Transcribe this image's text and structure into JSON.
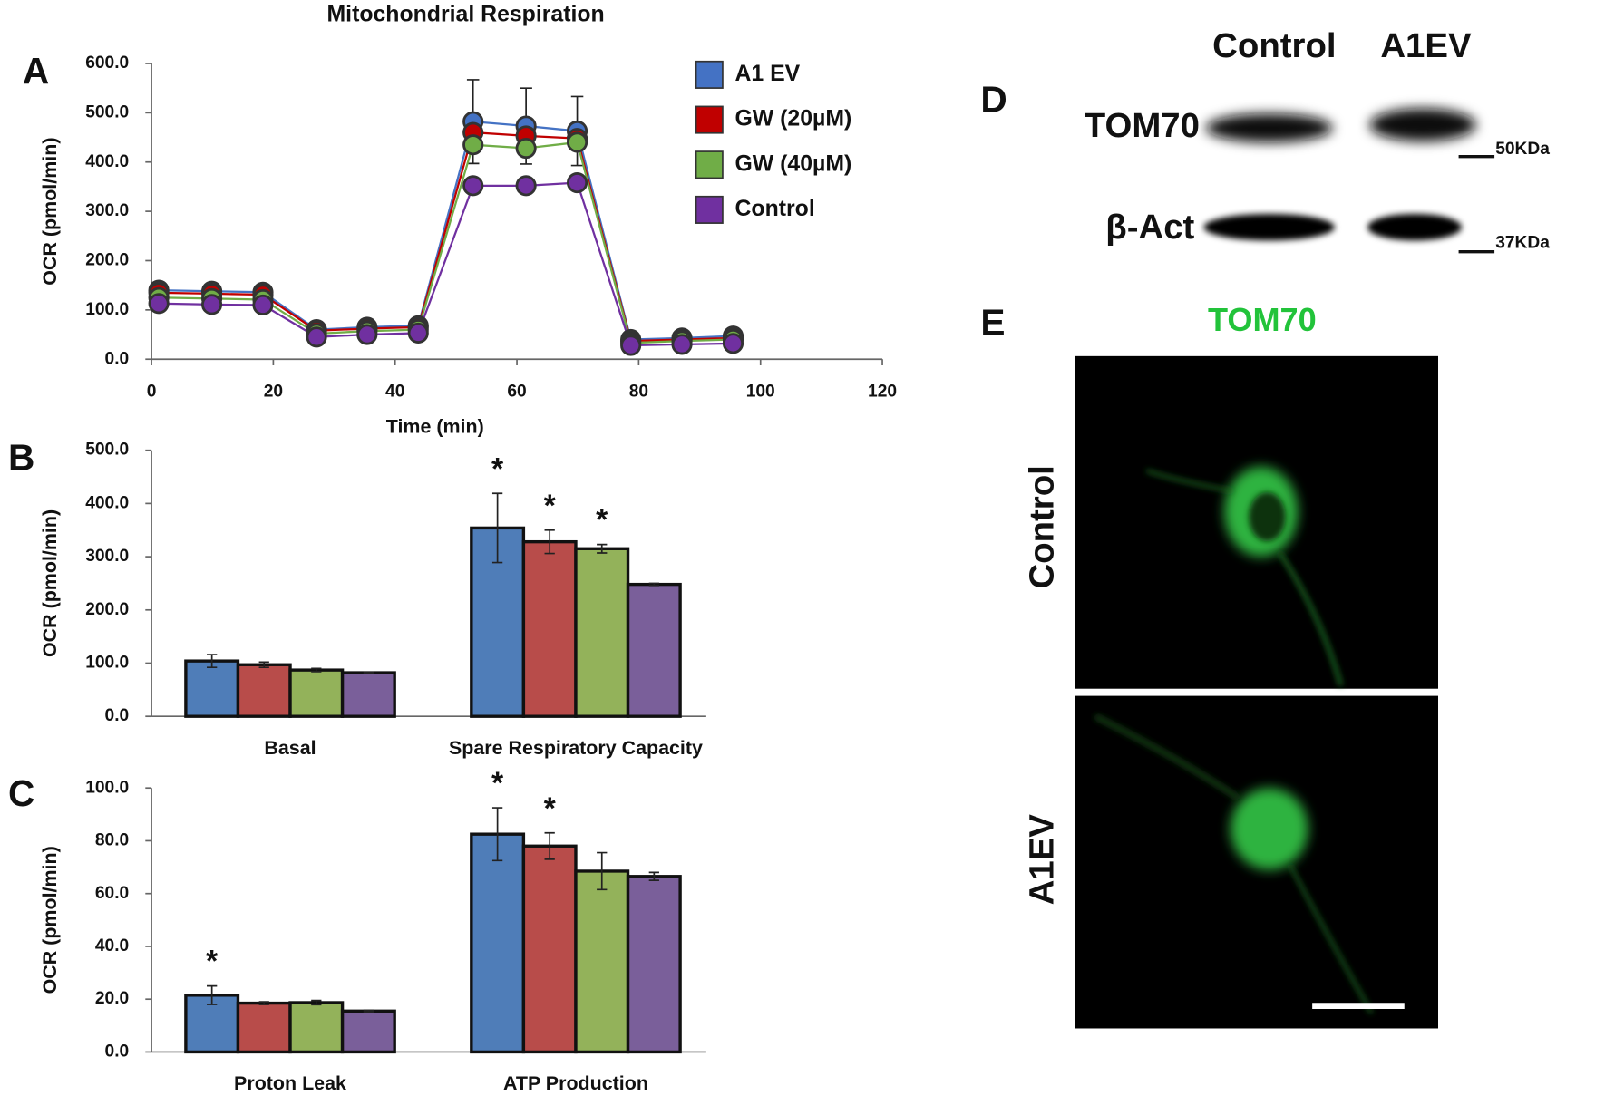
{
  "panel_labels": [
    "A",
    "B",
    "C",
    "D",
    "E"
  ],
  "chart_data": [
    {
      "type": "line",
      "title": "Mitochondrial Respiration",
      "xlabel": "Time (min)",
      "ylabel": "OCR (pmol/min)",
      "x": [
        1.2,
        9.9,
        18.3,
        27.1,
        35.4,
        43.8,
        52.8,
        61.5,
        69.9,
        78.7,
        87.1,
        95.5
      ],
      "xlim": [
        0,
        120
      ],
      "xticks": [
        0,
        20,
        40,
        60,
        80,
        100,
        120
      ],
      "ylim": [
        0,
        600
      ],
      "yticks": [
        {
          "value": 0,
          "label": "0.0"
        },
        {
          "value": 100,
          "label": "100.0"
        },
        {
          "value": 200,
          "label": "200.0"
        },
        {
          "value": 300,
          "label": "300.0"
        },
        {
          "value": 400,
          "label": "400.0"
        },
        {
          "value": 500,
          "label": "500.0"
        },
        {
          "value": 600,
          "label": "600.0"
        }
      ],
      "legend": "top-right",
      "series": [
        {
          "name": "A1 EV",
          "color": "#4472c4",
          "values": [
            140,
            138,
            136,
            60,
            65,
            68,
            482,
            473,
            463,
            40,
            43,
            47
          ],
          "errors": [
            8,
            8,
            8,
            5,
            5,
            5,
            85,
            77,
            70,
            5,
            5,
            5
          ]
        },
        {
          "name": "GW (20µM)",
          "color": "#c00000",
          "values": [
            135,
            133,
            131,
            58,
            62,
            65,
            460,
            453,
            448,
            37,
            40,
            43
          ]
        },
        {
          "name": "GW (40µM)",
          "color": "#70ad47",
          "values": [
            125,
            123,
            121,
            52,
            57,
            60,
            435,
            428,
            440,
            33,
            37,
            40
          ]
        },
        {
          "name": "Control",
          "color": "#7030a0",
          "values": [
            113,
            111,
            110,
            45,
            50,
            53,
            352,
            352,
            358,
            28,
            30,
            32
          ]
        }
      ]
    },
    {
      "type": "bar",
      "ylabel": "OCR (pmol/min)",
      "categories": [
        "Basal",
        "Spare Respiratory Capacity"
      ],
      "ylim": [
        0,
        500
      ],
      "yticks": [
        {
          "value": 0,
          "label": "0.0"
        },
        {
          "value": 100,
          "label": "100.0"
        },
        {
          "value": 200,
          "label": "200.0"
        },
        {
          "value": 300,
          "label": "300.0"
        },
        {
          "value": 400,
          "label": "400.0"
        },
        {
          "value": 500,
          "label": "500.0"
        }
      ],
      "series": [
        {
          "color": "#4f7db8",
          "values": [
            104,
            354
          ],
          "errors": [
            12,
            65
          ],
          "significance": [
            null,
            "*"
          ]
        },
        {
          "color": "#b84c4a",
          "values": [
            97,
            328
          ],
          "errors": [
            5,
            22
          ],
          "significance": [
            null,
            "*"
          ]
        },
        {
          "color": "#93b25a",
          "values": [
            87,
            315
          ],
          "errors": [
            3,
            8
          ],
          "significance": [
            null,
            "*"
          ]
        },
        {
          "color": "#7a5f9a",
          "values": [
            82,
            248
          ],
          "errors": [
            1,
            2
          ]
        }
      ]
    },
    {
      "type": "bar",
      "ylabel": "OCR (pmol/min)",
      "categories": [
        "Proton Leak",
        "ATP Production"
      ],
      "ylim": [
        0,
        100
      ],
      "yticks": [
        {
          "value": 0,
          "label": "0.0"
        },
        {
          "value": 20,
          "label": "20.0"
        },
        {
          "value": 40,
          "label": "40.0"
        },
        {
          "value": 60,
          "label": "60.0"
        },
        {
          "value": 80,
          "label": "80.0"
        },
        {
          "value": 100,
          "label": "100.0"
        }
      ],
      "series": [
        {
          "color": "#4f7db8",
          "values": [
            21.5,
            82.5
          ],
          "errors": [
            3.5,
            10
          ],
          "significance": [
            "*",
            "*"
          ]
        },
        {
          "color": "#b84c4a",
          "values": [
            18.5,
            78
          ],
          "errors": [
            0.5,
            5
          ],
          "significance": [
            null,
            "*"
          ]
        },
        {
          "color": "#93b25a",
          "values": [
            18.7,
            68.5
          ],
          "errors": [
            0.8,
            7
          ]
        },
        {
          "color": "#7a5f9a",
          "values": [
            15.5,
            66.5
          ],
          "errors": [
            0.3,
            1.5
          ]
        }
      ]
    }
  ],
  "blot": {
    "columns": [
      "Control",
      "A1EV"
    ],
    "rows": [
      "TOM70",
      "β-Act"
    ],
    "markers": [
      "50KDa",
      "37KDa"
    ]
  },
  "images": {
    "title": "TOM70",
    "rows": [
      "Control",
      "A1EV"
    ]
  }
}
